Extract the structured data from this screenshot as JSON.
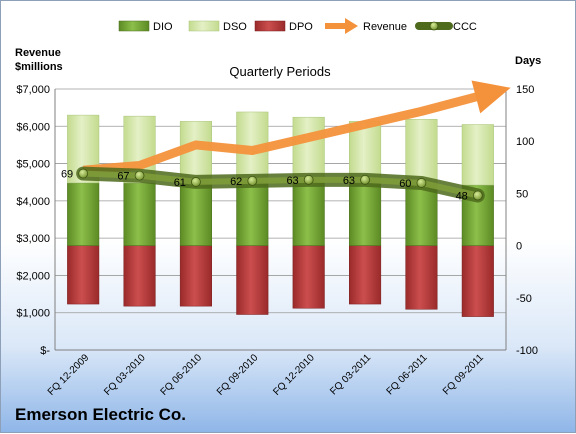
{
  "chart_data": {
    "type": "bar",
    "title": "Quarterly Periods",
    "company": "Emerson Electric Co.",
    "categories": [
      "FQ 12-2009",
      "FQ 03-2010",
      "FQ 06-2010",
      "FQ 09-2010",
      "FQ 12-2010",
      "FQ 03-2011",
      "FQ 06-2011",
      "FQ 09-2011"
    ],
    "left_axis": {
      "label_line1": "Revenue",
      "label_line2": "$millions",
      "range": [
        0,
        7000
      ],
      "ticks": [
        0,
        1000,
        2000,
        3000,
        4000,
        5000,
        6000,
        7000
      ],
      "tick_labels": [
        "$-",
        "$1,000",
        "$2,000",
        "$3,000",
        "$4,000",
        "$5,000",
        "$6,000",
        "$7,000"
      ]
    },
    "right_axis": {
      "label": "Days",
      "range": [
        -100,
        150
      ],
      "ticks": [
        -100,
        -50,
        0,
        50,
        100,
        150
      ],
      "tick_labels": [
        "-100",
        "-50",
        "0",
        "50",
        "100",
        "150"
      ]
    },
    "legend": {
      "position": "top",
      "entries": [
        "DIO",
        "DSO",
        "DPO",
        "Revenue",
        "CCC"
      ]
    },
    "colors": {
      "dio": "#7aa83a",
      "dso": "#d2e6a6",
      "dpo": "#b53a3a",
      "revenue": "#f4923c",
      "ccc": "#5f7a22"
    },
    "series": [
      {
        "name": "DIO",
        "values": [
          60,
          60,
          59,
          61,
          61,
          60,
          59,
          58
        ]
      },
      {
        "name": "DSO",
        "values": [
          65,
          64,
          60,
          67,
          62,
          59,
          62,
          58
        ]
      },
      {
        "name": "DPO",
        "values": [
          -56,
          -58,
          -58,
          -66,
          -60,
          -56,
          -61,
          -68
        ]
      },
      {
        "name": "CCC",
        "values": [
          69,
          67,
          61,
          62,
          63,
          63,
          60,
          48
        ]
      }
    ],
    "revenue_trend": [
      4820,
      4950,
      5500,
      5350,
      5700,
      6050,
      6400,
      6800
    ],
    "ccc_labels": [
      "69",
      "67",
      "61",
      "62",
      "63",
      "63",
      "60",
      "48"
    ]
  }
}
